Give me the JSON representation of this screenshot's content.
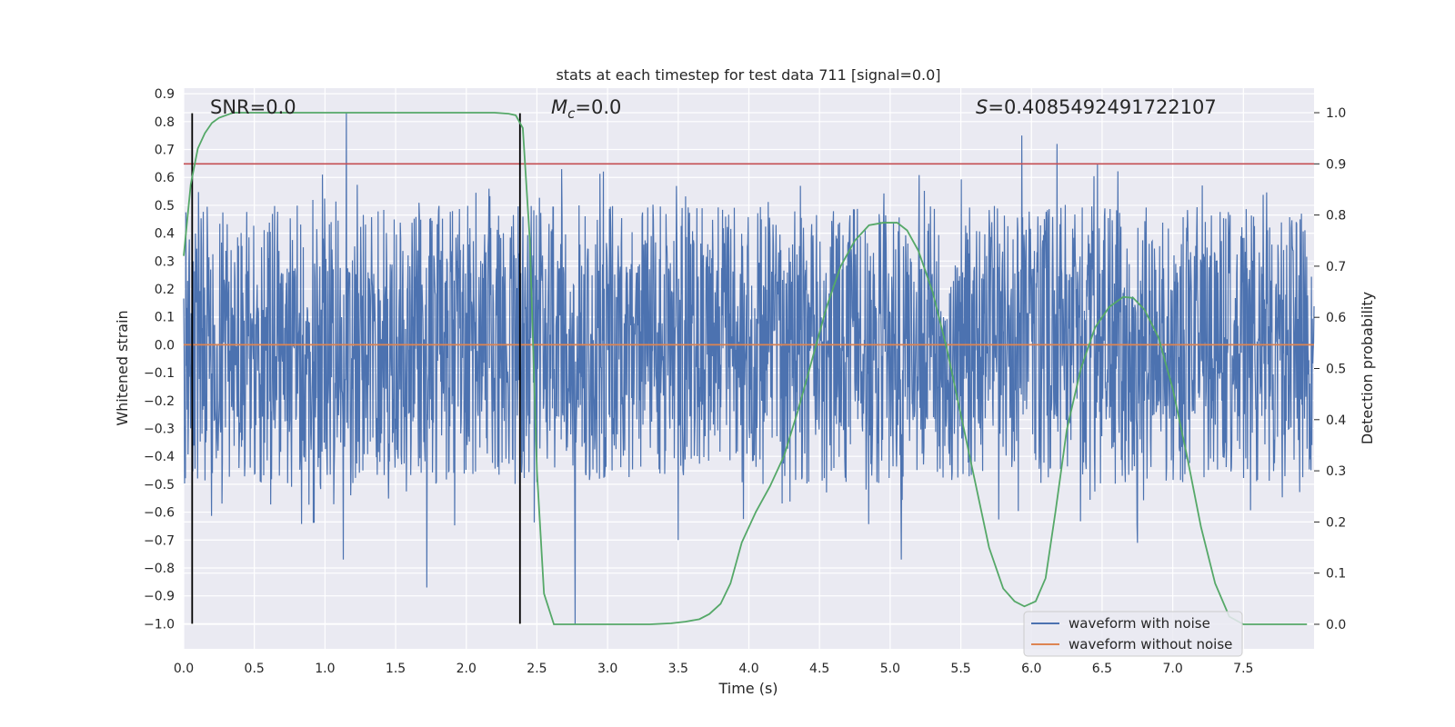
{
  "chart_data": {
    "type": "line",
    "title": "stats at each timestep for test data 711 [signal=0.0]",
    "xlabel": "Time (s)",
    "ylabel": "Whitened strain",
    "ylabel_right": "Detection probability",
    "xlim": [
      0.0,
      8.0
    ],
    "ylim": [
      -1.09,
      0.92
    ],
    "ylim_right": [
      -0.048,
      1.048
    ],
    "x_ticks": [
      "0.0",
      "0.5",
      "1.0",
      "1.5",
      "2.0",
      "2.5",
      "3.0",
      "3.5",
      "4.0",
      "4.5",
      "5.0",
      "5.5",
      "6.0",
      "6.5",
      "7.0",
      "7.5"
    ],
    "y_ticks": [
      "0.9",
      "0.8",
      "0.7",
      "0.6",
      "0.5",
      "0.4",
      "0.3",
      "0.2",
      "0.1",
      "0.0",
      "-0.1",
      "-0.2",
      "-0.3",
      "-0.4",
      "-0.5",
      "-0.6",
      "-0.7",
      "-0.8",
      "-0.9",
      "-1.0"
    ],
    "y_ticks_right": [
      "1.0",
      "0.9",
      "0.8",
      "0.7",
      "0.6",
      "0.5",
      "0.4",
      "0.3",
      "0.2",
      "0.1",
      "0.0"
    ],
    "annotations": {
      "snr_prefix": "SNR=",
      "snr_value": "0.0",
      "mc_symbol": "M",
      "mc_subscript": "c",
      "mc_value": "=0.0",
      "s_symbol": "S",
      "s_value": "=0.4085492491722107"
    },
    "legend": {
      "location": "lower right",
      "entries": [
        {
          "label": "waveform with noise",
          "color": "#4c72b0"
        },
        {
          "label": "waveform without noise",
          "color": "#dd8452"
        }
      ]
    },
    "vertical_lines_x": [
      0.06,
      2.38
    ],
    "vertical_line_range": [
      -1.0,
      0.83
    ],
    "threshold_probability": 0.9,
    "noise_envelope": {
      "dense_band": [
        -0.27,
        0.28
      ],
      "typical_peak": 0.5,
      "max_peak": 0.83,
      "min_trough": -1.0
    },
    "notable_spikes": [
      {
        "x": 1.15,
        "y": 0.83
      },
      {
        "x": 2.77,
        "y": -1.0
      },
      {
        "x": 1.13,
        "y": -0.77
      },
      {
        "x": 1.72,
        "y": -0.87
      },
      {
        "x": 5.93,
        "y": 0.75
      },
      {
        "x": 6.18,
        "y": 0.72
      },
      {
        "x": 5.08,
        "y": -0.77
      },
      {
        "x": 6.75,
        "y": -0.71
      },
      {
        "x": 3.5,
        "y": -0.7
      }
    ],
    "series": [
      {
        "name": "detection probability",
        "color": "#55a868",
        "x": [
          0.0,
          0.05,
          0.1,
          0.15,
          0.2,
          0.25,
          0.3,
          0.35,
          0.4,
          0.5,
          1.0,
          1.5,
          2.0,
          2.2,
          2.3,
          2.35,
          2.4,
          2.45,
          2.5,
          2.55,
          2.62,
          2.7,
          3.0,
          3.3,
          3.45,
          3.55,
          3.65,
          3.72,
          3.8,
          3.87,
          3.95,
          4.05,
          4.15,
          4.25,
          4.35,
          4.45,
          4.55,
          4.65,
          4.75,
          4.85,
          4.95,
          5.05,
          5.12,
          5.2,
          5.3,
          5.4,
          5.5,
          5.6,
          5.7,
          5.8,
          5.88,
          5.95,
          6.03,
          6.1,
          6.17,
          6.25,
          6.35,
          6.45,
          6.55,
          6.65,
          6.72,
          6.8,
          6.9,
          7.0,
          7.1,
          7.2,
          7.3,
          7.4,
          7.5,
          7.6,
          7.75,
          7.95
        ],
        "values": [
          0.72,
          0.86,
          0.93,
          0.96,
          0.98,
          0.99,
          0.995,
          1.0,
          1.0,
          1.0,
          1.0,
          1.0,
          1.0,
          1.0,
          0.998,
          0.995,
          0.97,
          0.75,
          0.3,
          0.06,
          0.0,
          0.0,
          0.0,
          0.0,
          0.002,
          0.005,
          0.01,
          0.02,
          0.04,
          0.08,
          0.16,
          0.22,
          0.27,
          0.33,
          0.42,
          0.52,
          0.62,
          0.7,
          0.75,
          0.78,
          0.785,
          0.785,
          0.77,
          0.73,
          0.65,
          0.54,
          0.41,
          0.28,
          0.15,
          0.07,
          0.045,
          0.035,
          0.045,
          0.09,
          0.22,
          0.38,
          0.5,
          0.58,
          0.62,
          0.64,
          0.638,
          0.615,
          0.56,
          0.46,
          0.33,
          0.19,
          0.08,
          0.015,
          0.0,
          0.0,
          0.0,
          0.0
        ]
      },
      {
        "name": "waveform without noise",
        "color": "#dd8452",
        "x": [
          0.0,
          8.0
        ],
        "values": [
          0.0,
          0.0
        ]
      }
    ],
    "colors": {
      "background": "#eaeaf2",
      "grid": "#ffffff",
      "noise": "#4c72b0",
      "clean": "#dd8452",
      "probability": "#55a868",
      "threshold": "#c44e52",
      "marker": "#000000"
    }
  }
}
